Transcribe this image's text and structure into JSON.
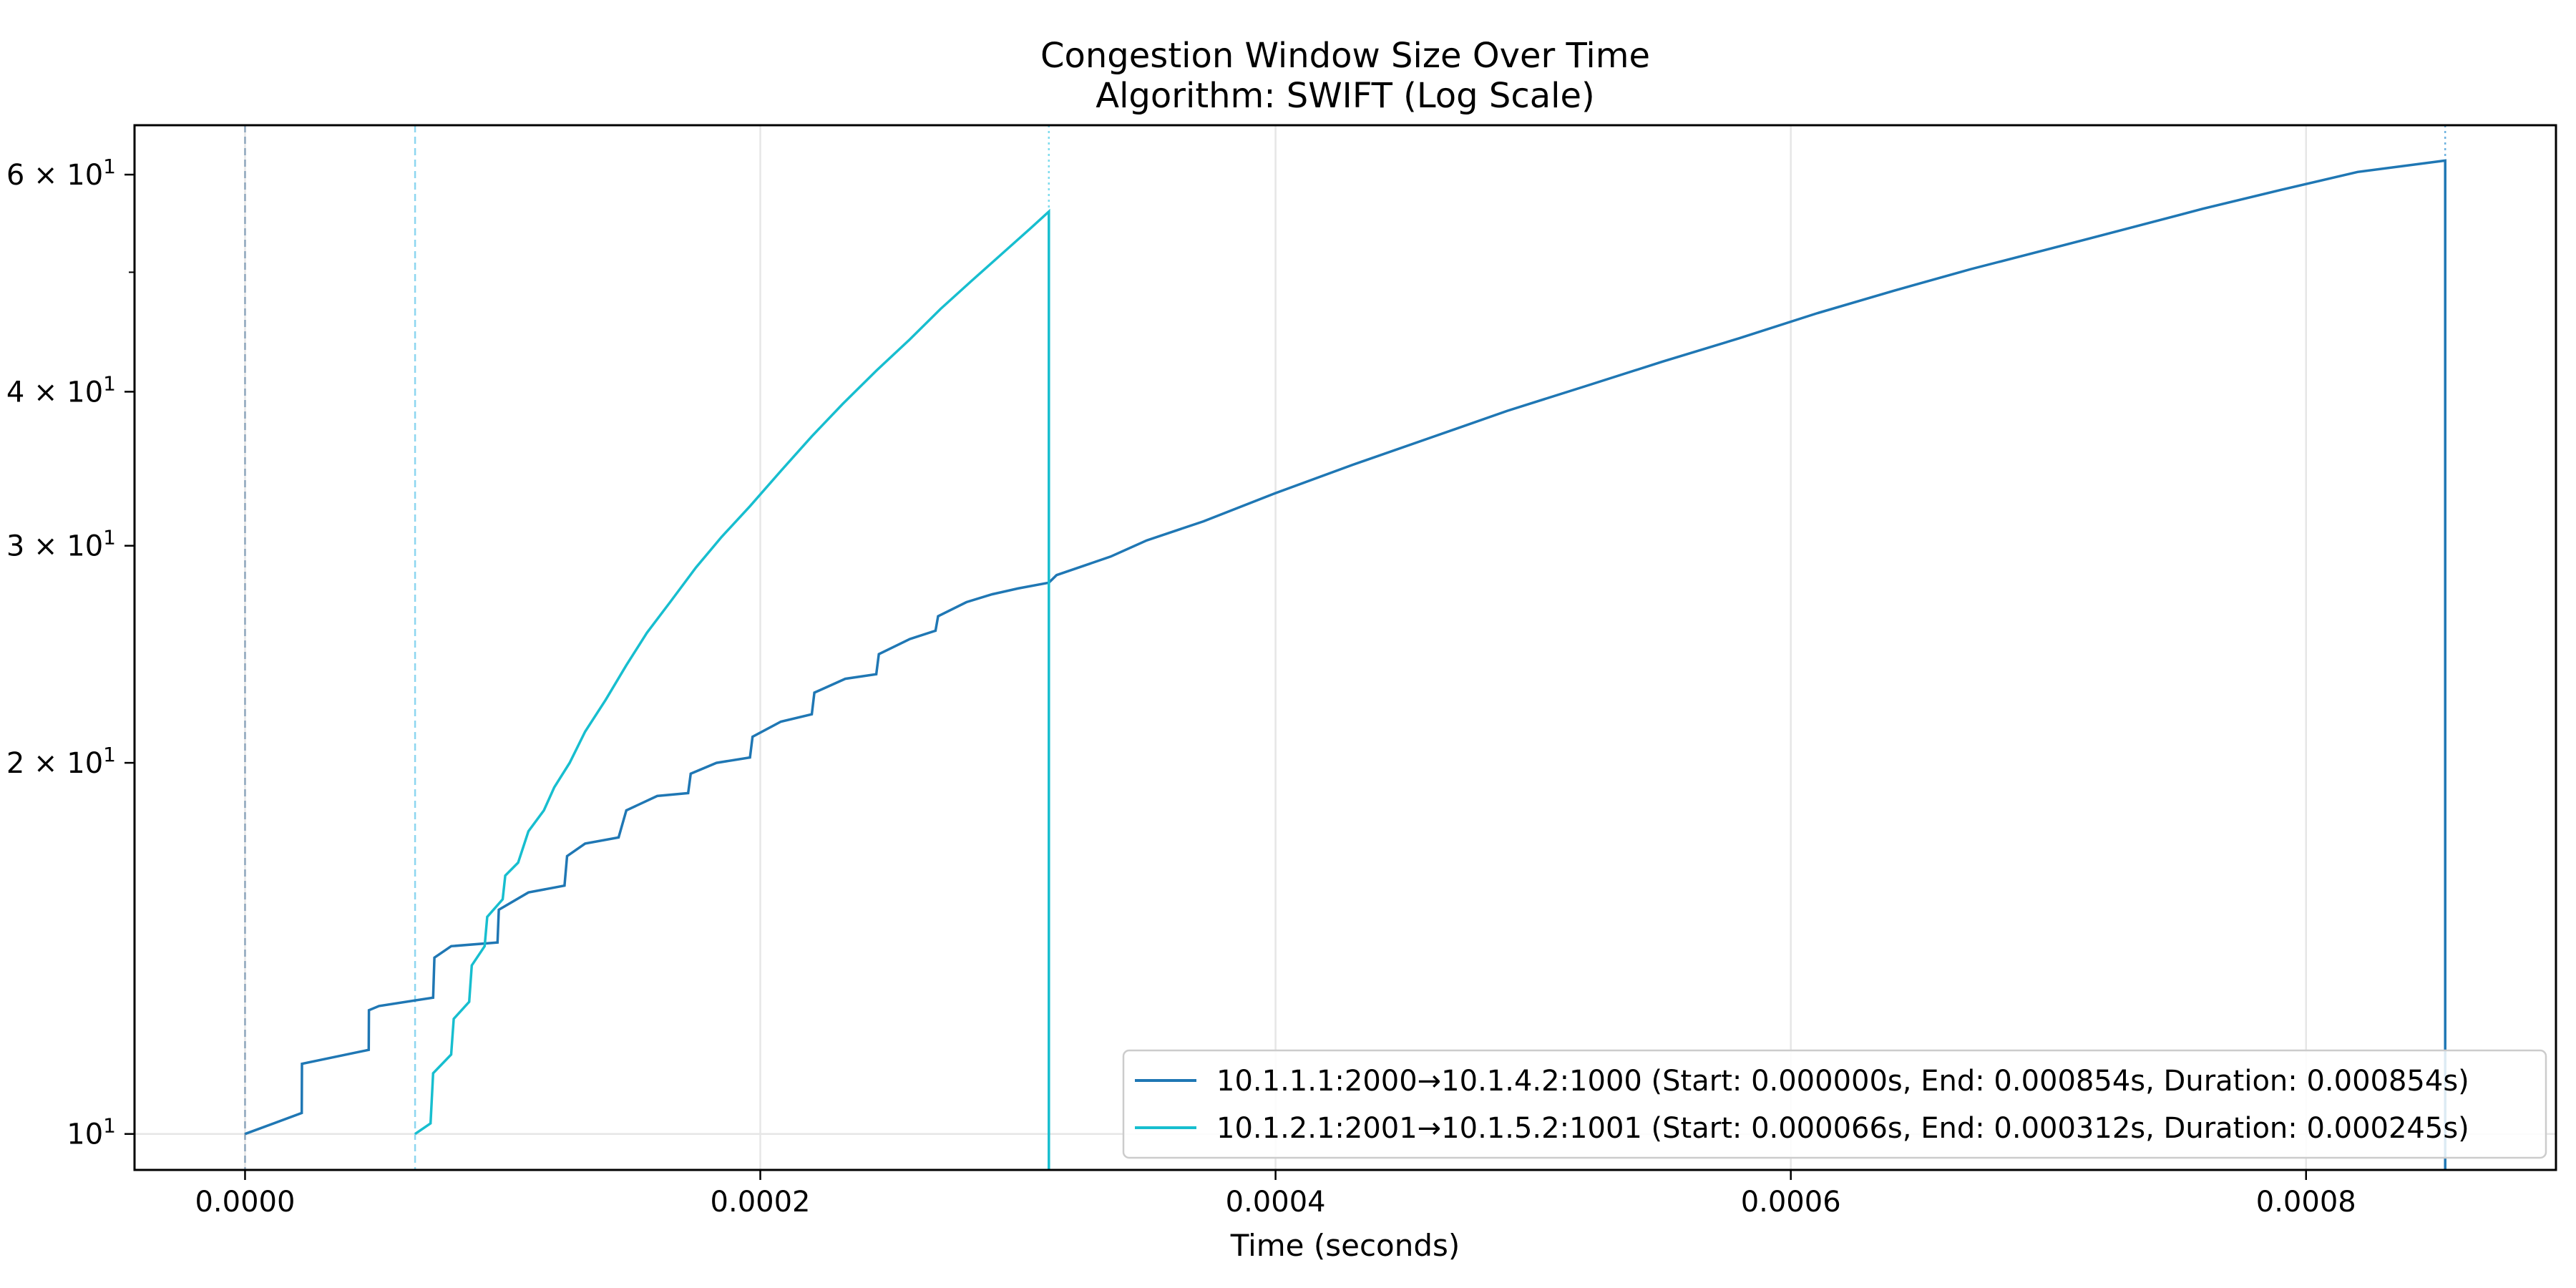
{
  "chart_data": {
    "type": "line",
    "title": "Congestion Window Size Over Time",
    "subtitle": "Algorithm: SWIFT (Log Scale)",
    "xlabel": "Time (seconds)",
    "ylabel": "",
    "xlim": [
      -4.29e-05,
      0.000897
    ],
    "ylim": [
      9.35,
      65.8
    ],
    "yscale": "log",
    "grid": "x-only",
    "legend_position": "lower-right",
    "x_ticks": [
      {
        "value": 0.0,
        "label": "0.0000"
      },
      {
        "value": 0.0002,
        "label": "0.0002"
      },
      {
        "value": 0.0004,
        "label": "0.0004"
      },
      {
        "value": 0.0006,
        "label": "0.0006"
      },
      {
        "value": 0.0008,
        "label": "0.0008"
      }
    ],
    "y_ticks": [
      {
        "value": 10,
        "base": "10",
        "exp": "1"
      },
      {
        "value": 20,
        "base": "2 × 10",
        "exp": "1"
      },
      {
        "value": 30,
        "base": "3 × 10",
        "exp": "1"
      },
      {
        "value": 40,
        "base": "4 × 10",
        "exp": "1"
      },
      {
        "value": 60,
        "base": "6 × 10",
        "exp": "1"
      }
    ],
    "y_minor_ticks": [
      50
    ],
    "series": [
      {
        "name": "10.1.1.1:2000→10.1.4.2:1000 (Start: 0.000000s, End: 0.000854s, Duration: 0.000854s)",
        "color": "#1f77b4",
        "start": 0.0,
        "end": 0.000854,
        "points": [
          [
            0.0,
            10.0
          ],
          [
            2.2e-05,
            10.4
          ],
          [
            2.21e-05,
            11.4
          ],
          [
            4.8e-05,
            11.7
          ],
          [
            4.81e-05,
            12.6
          ],
          [
            5.2e-05,
            12.7
          ],
          [
            7.3e-05,
            12.9
          ],
          [
            7.35e-05,
            13.9
          ],
          [
            8e-05,
            14.2
          ],
          [
            9.8e-05,
            14.3
          ],
          [
            9.85e-05,
            15.2
          ],
          [
            0.00011,
            15.7
          ],
          [
            0.000124,
            15.9
          ],
          [
            0.000125,
            16.8
          ],
          [
            0.000132,
            17.2
          ],
          [
            0.000145,
            17.4
          ],
          [
            0.000148,
            18.3
          ],
          [
            0.00016,
            18.8
          ],
          [
            0.000172,
            18.9
          ],
          [
            0.000173,
            19.6
          ],
          [
            0.000183,
            20.0
          ],
          [
            0.000196,
            20.2
          ],
          [
            0.000197,
            21.0
          ],
          [
            0.000208,
            21.6
          ],
          [
            0.00022,
            21.9
          ],
          [
            0.000221,
            22.8
          ],
          [
            0.000233,
            23.4
          ],
          [
            0.000245,
            23.6
          ],
          [
            0.000246,
            24.5
          ],
          [
            0.000258,
            25.2
          ],
          [
            0.000268,
            25.6
          ],
          [
            0.000269,
            26.3
          ],
          [
            0.00028,
            27.0
          ],
          [
            0.00029,
            27.4
          ],
          [
            0.0003,
            27.7
          ],
          [
            0.000312,
            28.0
          ],
          [
            0.000315,
            28.4
          ],
          [
            0.000336,
            29.4
          ],
          [
            0.00035,
            30.3
          ],
          [
            0.000372,
            31.4
          ],
          [
            0.0004,
            33.1
          ],
          [
            0.00043,
            34.9
          ],
          [
            0.00046,
            36.7
          ],
          [
            0.00049,
            38.6
          ],
          [
            0.00052,
            40.4
          ],
          [
            0.00055,
            42.3
          ],
          [
            0.00058,
            44.2
          ],
          [
            0.00061,
            46.3
          ],
          [
            0.00064,
            48.3
          ],
          [
            0.00067,
            50.3
          ],
          [
            0.0007,
            52.2
          ],
          [
            0.00073,
            54.2
          ],
          [
            0.00076,
            56.3
          ],
          [
            0.00079,
            58.3
          ],
          [
            0.00082,
            60.3
          ],
          [
            0.000854,
            61.6
          ]
        ]
      },
      {
        "name": "10.1.2.1:2001→10.1.5.2:1001 (Start: 0.000066s, End: 0.000312s, Duration: 0.000245s)",
        "color": "#17becf",
        "start": 6.6e-05,
        "end": 0.000312,
        "points": [
          [
            6.6e-05,
            10.0
          ],
          [
            7.2e-05,
            10.2
          ],
          [
            7.3e-05,
            11.2
          ],
          [
            8e-05,
            11.6
          ],
          [
            8.1e-05,
            12.4
          ],
          [
            8.7e-05,
            12.8
          ],
          [
            8.8e-05,
            13.7
          ],
          [
            9.3e-05,
            14.2
          ],
          [
            9.4e-05,
            15.0
          ],
          [
            0.0001,
            15.5
          ],
          [
            0.000101,
            16.2
          ],
          [
            0.000106,
            16.6
          ],
          [
            0.00011,
            17.6
          ],
          [
            0.000116,
            18.3
          ],
          [
            0.00012,
            19.1
          ],
          [
            0.000126,
            20.0
          ],
          [
            0.000132,
            21.2
          ],
          [
            0.00014,
            22.5
          ],
          [
            0.000148,
            24.0
          ],
          [
            0.000156,
            25.5
          ],
          [
            0.000165,
            27.0
          ],
          [
            0.000175,
            28.8
          ],
          [
            0.000185,
            30.5
          ],
          [
            0.000196,
            32.3
          ],
          [
            0.000208,
            34.5
          ],
          [
            0.00022,
            36.8
          ],
          [
            0.000232,
            39.1
          ],
          [
            0.000245,
            41.6
          ],
          [
            0.000258,
            44.1
          ],
          [
            0.00027,
            46.7
          ],
          [
            0.000282,
            49.2
          ],
          [
            0.000294,
            51.8
          ],
          [
            0.000305,
            54.3
          ],
          [
            0.000312,
            56.0
          ]
        ]
      }
    ]
  }
}
